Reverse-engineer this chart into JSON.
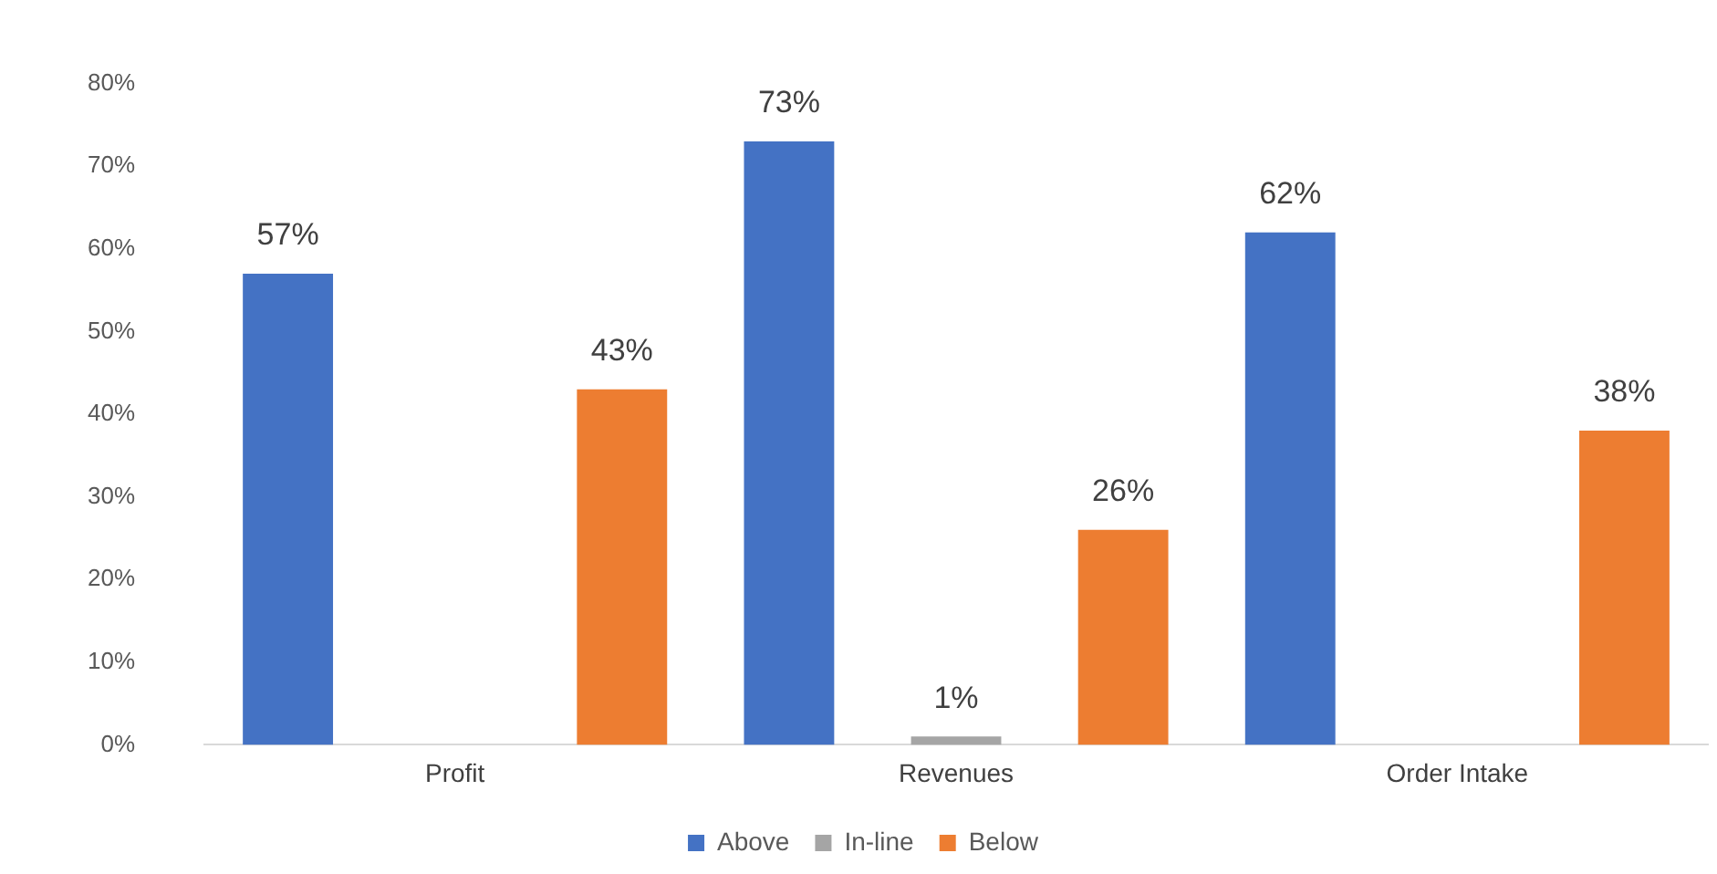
{
  "chart_data": {
    "type": "bar",
    "categories": [
      "Profit",
      "Revenues",
      "Order Intake"
    ],
    "series": [
      {
        "name": "Above",
        "color": "#4472c4",
        "values": [
          57,
          73,
          62
        ],
        "value_labels": [
          "57%",
          "73%",
          "62%"
        ]
      },
      {
        "name": "In-line",
        "color": "#a5a5a5",
        "values": [
          null,
          1,
          null
        ],
        "value_labels": [
          null,
          "1%",
          null
        ]
      },
      {
        "name": "Below",
        "color": "#ed7d31",
        "values": [
          43,
          26,
          38
        ],
        "value_labels": [
          "43%",
          "26%",
          "38%"
        ]
      }
    ],
    "ylim": [
      0,
      80
    ],
    "yticks": [
      {
        "value": 0,
        "label": "0%"
      },
      {
        "value": 10,
        "label": "10%"
      },
      {
        "value": 20,
        "label": "20%"
      },
      {
        "value": 30,
        "label": "30%"
      },
      {
        "value": 40,
        "label": "40%"
      },
      {
        "value": 50,
        "label": "50%"
      },
      {
        "value": 60,
        "label": "60%"
      },
      {
        "value": 70,
        "label": "70%"
      },
      {
        "value": 80,
        "label": "80%"
      }
    ],
    "grid": false,
    "legend": "bottom"
  }
}
